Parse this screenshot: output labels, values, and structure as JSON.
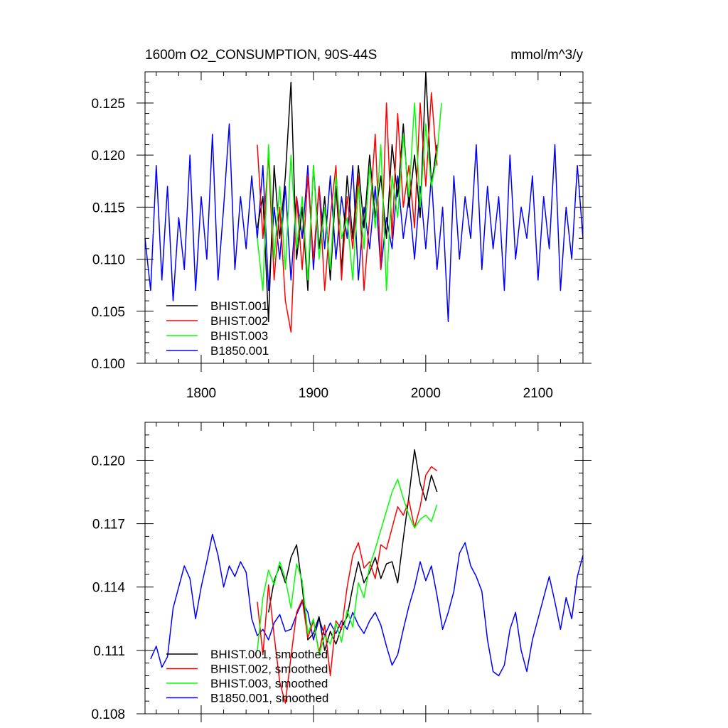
{
  "chart_data": [
    {
      "type": "line",
      "title": "1600m O2_CONSUMPTION, 90S-44S",
      "units": "mmol/m^3/y",
      "xlim": [
        1750,
        2140
      ],
      "ylim": [
        0.1,
        0.128
      ],
      "xticks": [
        1800,
        1900,
        2000,
        2100
      ],
      "xtick_labels": [
        "1800",
        "1900",
        "2000",
        "2100"
      ],
      "yticks": [
        0.1,
        0.105,
        0.11,
        0.115,
        0.12,
        0.125
      ],
      "ytick_labels": [
        "0.100",
        "0.105",
        "0.110",
        "0.115",
        "0.120",
        "0.125"
      ],
      "legend_position": "bottom-left",
      "series": [
        {
          "name": "BHIST.001",
          "color": "#000000",
          "x": [
            1850,
            1855,
            1860,
            1865,
            1870,
            1875,
            1880,
            1885,
            1890,
            1895,
            1900,
            1905,
            1910,
            1915,
            1920,
            1925,
            1930,
            1935,
            1940,
            1945,
            1950,
            1955,
            1960,
            1965,
            1970,
            1975,
            1980,
            1985,
            1990,
            1995,
            2000,
            2005,
            2010
          ],
          "y": [
            0.113,
            0.116,
            0.104,
            0.119,
            0.112,
            0.118,
            0.127,
            0.11,
            0.115,
            0.107,
            0.119,
            0.111,
            0.116,
            0.108,
            0.117,
            0.109,
            0.118,
            0.112,
            0.119,
            0.113,
            0.12,
            0.114,
            0.118,
            0.112,
            0.121,
            0.116,
            0.123,
            0.115,
            0.12,
            0.114,
            0.128,
            0.117,
            0.121
          ]
        },
        {
          "name": "BHIST.002",
          "color": "#ff0000",
          "x": [
            1850,
            1855,
            1860,
            1865,
            1870,
            1875,
            1880,
            1885,
            1890,
            1895,
            1900,
            1905,
            1910,
            1915,
            1920,
            1925,
            1930,
            1935,
            1940,
            1945,
            1950,
            1955,
            1960,
            1965,
            1970,
            1975,
            1980,
            1985,
            1990,
            1995,
            2000,
            2005,
            2010
          ],
          "y": [
            0.121,
            0.112,
            0.12,
            0.108,
            0.115,
            0.106,
            0.103,
            0.116,
            0.109,
            0.118,
            0.11,
            0.117,
            0.107,
            0.114,
            0.119,
            0.108,
            0.116,
            0.111,
            0.118,
            0.107,
            0.114,
            0.122,
            0.109,
            0.125,
            0.112,
            0.124,
            0.115,
            0.119,
            0.113,
            0.125,
            0.117,
            0.126,
            0.119
          ]
        },
        {
          "name": "BHIST.003",
          "color": "#00ff00",
          "x": [
            1850,
            1855,
            1860,
            1865,
            1870,
            1875,
            1880,
            1885,
            1890,
            1895,
            1900,
            1905,
            1910,
            1915,
            1920,
            1925,
            1930,
            1935,
            1940,
            1945,
            1950,
            1955,
            1960,
            1965,
            1970,
            1975,
            1980,
            1985,
            1990,
            1995,
            2000,
            2005,
            2010,
            2014
          ],
          "y": [
            0.112,
            0.107,
            0.121,
            0.11,
            0.117,
            0.109,
            0.12,
            0.111,
            0.116,
            0.108,
            0.119,
            0.11,
            0.115,
            0.109,
            0.118,
            0.112,
            0.114,
            0.108,
            0.117,
            0.111,
            0.119,
            0.113,
            0.121,
            0.107,
            0.118,
            0.114,
            0.122,
            0.116,
            0.125,
            0.115,
            0.123,
            0.117,
            0.12,
            0.125
          ]
        },
        {
          "name": "B1850.001",
          "color": "#0000ff",
          "x": [
            1750,
            1755,
            1760,
            1765,
            1770,
            1775,
            1780,
            1785,
            1790,
            1795,
            1800,
            1805,
            1810,
            1815,
            1820,
            1825,
            1830,
            1835,
            1840,
            1845,
            1850,
            1855,
            1860,
            1865,
            1870,
            1875,
            1880,
            1885,
            1890,
            1895,
            1900,
            1905,
            1910,
            1915,
            1920,
            1925,
            1930,
            1935,
            1940,
            1945,
            1950,
            1955,
            1960,
            1965,
            1970,
            1975,
            1980,
            1985,
            1990,
            1995,
            2000,
            2005,
            2010,
            2015,
            2020,
            2025,
            2030,
            2035,
            2040,
            2045,
            2050,
            2055,
            2060,
            2065,
            2070,
            2075,
            2080,
            2085,
            2090,
            2095,
            2100,
            2105,
            2110,
            2115,
            2120,
            2125,
            2130,
            2135,
            2140
          ],
          "y": [
            0.112,
            0.107,
            0.119,
            0.108,
            0.117,
            0.106,
            0.114,
            0.109,
            0.12,
            0.107,
            0.116,
            0.11,
            0.122,
            0.108,
            0.115,
            0.123,
            0.109,
            0.116,
            0.111,
            0.118,
            0.112,
            0.119,
            0.107,
            0.115,
            0.11,
            0.117,
            0.108,
            0.116,
            0.112,
            0.119,
            0.109,
            0.117,
            0.111,
            0.118,
            0.11,
            0.116,
            0.112,
            0.119,
            0.108,
            0.115,
            0.111,
            0.117,
            0.109,
            0.114,
            0.111,
            0.118,
            0.112,
            0.116,
            0.11,
            0.117,
            0.111,
            0.118,
            0.109,
            0.115,
            0.104,
            0.118,
            0.11,
            0.116,
            0.112,
            0.121,
            0.109,
            0.117,
            0.111,
            0.116,
            0.107,
            0.12,
            0.11,
            0.115,
            0.112,
            0.118,
            0.108,
            0.116,
            0.111,
            0.121,
            0.107,
            0.115,
            0.11,
            0.119,
            0.112
          ]
        }
      ]
    },
    {
      "type": "line",
      "xlim": [
        1750,
        2140
      ],
      "ylim": [
        0.108,
        0.1218
      ],
      "xticks": [
        1800,
        1900,
        2000,
        2100
      ],
      "yticks": [
        0.108,
        0.111,
        0.114,
        0.117,
        0.12
      ],
      "ytick_labels": [
        "0.108",
        "0.111",
        "0.114",
        "0.117",
        "0.120"
      ],
      "legend_position": "bottom-left",
      "series": [
        {
          "name": "BHIST.001, smoothed",
          "color": "#000000",
          "x": [
            1860,
            1865,
            1870,
            1875,
            1880,
            1885,
            1890,
            1895,
            1900,
            1905,
            1910,
            1915,
            1920,
            1925,
            1930,
            1935,
            1940,
            1945,
            1950,
            1955,
            1960,
            1965,
            1970,
            1975,
            1980,
            1985,
            1990,
            1995,
            2000,
            2005,
            2010
          ],
          "y": [
            0.1128,
            0.1143,
            0.115,
            0.1142,
            0.1154,
            0.116,
            0.114,
            0.1115,
            0.1118,
            0.1126,
            0.111,
            0.1119,
            0.1113,
            0.1121,
            0.1126,
            0.114,
            0.1152,
            0.1142,
            0.1147,
            0.1154,
            0.1144,
            0.1151,
            0.1152,
            0.1142,
            0.1163,
            0.1183,
            0.1205,
            0.1189,
            0.1181,
            0.1193,
            0.1185
          ]
        },
        {
          "name": "BHIST.002, smoothed",
          "color": "#ff0000",
          "x": [
            1850,
            1855,
            1860,
            1865,
            1870,
            1875,
            1880,
            1885,
            1890,
            1895,
            1900,
            1905,
            1910,
            1915,
            1920,
            1925,
            1930,
            1935,
            1940,
            1945,
            1950,
            1955,
            1960,
            1965,
            1970,
            1975,
            1980,
            1985,
            1990,
            1995,
            2000,
            2005,
            2010
          ],
          "y": [
            0.1133,
            0.1108,
            0.1141,
            0.1117,
            0.1095,
            0.1085,
            0.1107,
            0.1128,
            0.1134,
            0.1116,
            0.1124,
            0.1109,
            0.1122,
            0.1098,
            0.1124,
            0.112,
            0.114,
            0.1155,
            0.1161,
            0.1149,
            0.1152,
            0.1144,
            0.116,
            0.1158,
            0.1168,
            0.1178,
            0.1174,
            0.1181,
            0.1168,
            0.1178,
            0.1193,
            0.1197,
            0.1195
          ]
        },
        {
          "name": "BHIST.003, smoothed",
          "color": "#00ff00",
          "x": [
            1850,
            1855,
            1860,
            1865,
            1870,
            1875,
            1880,
            1885,
            1890,
            1895,
            1900,
            1905,
            1910,
            1915,
            1920,
            1925,
            1930,
            1935,
            1940,
            1945,
            1950,
            1955,
            1960,
            1965,
            1970,
            1975,
            1980,
            1985,
            1990,
            1995,
            2000,
            2005,
            2010
          ],
          "y": [
            0.111,
            0.1135,
            0.1148,
            0.1141,
            0.1152,
            0.1144,
            0.113,
            0.1151,
            0.1143,
            0.1118,
            0.1125,
            0.1108,
            0.1117,
            0.1113,
            0.1123,
            0.1114,
            0.1129,
            0.1121,
            0.1142,
            0.1135,
            0.115,
            0.1158,
            0.1167,
            0.1176,
            0.1185,
            0.1191,
            0.1182,
            0.1174,
            0.1168,
            0.1172,
            0.1174,
            0.1171,
            0.1179
          ]
        },
        {
          "name": "B1850.001, smoothed",
          "color": "#0000ff",
          "x": [
            1755,
            1760,
            1765,
            1770,
            1775,
            1780,
            1785,
            1790,
            1795,
            1800,
            1805,
            1810,
            1815,
            1820,
            1825,
            1830,
            1835,
            1840,
            1845,
            1850,
            1855,
            1860,
            1865,
            1870,
            1875,
            1880,
            1885,
            1890,
            1895,
            1900,
            1905,
            1910,
            1915,
            1920,
            1925,
            1930,
            1935,
            1940,
            1945,
            1950,
            1955,
            1960,
            1965,
            1970,
            1975,
            1980,
            1985,
            1990,
            1995,
            2000,
            2005,
            2010,
            2015,
            2020,
            2025,
            2030,
            2035,
            2040,
            2045,
            2050,
            2055,
            2060,
            2065,
            2070,
            2075,
            2080,
            2085,
            2090,
            2095,
            2100,
            2105,
            2110,
            2115,
            2120,
            2125,
            2130,
            2135,
            2140
          ],
          "y": [
            0.1106,
            0.1112,
            0.1102,
            0.1107,
            0.113,
            0.114,
            0.115,
            0.1144,
            0.1125,
            0.114,
            0.1152,
            0.1165,
            0.1155,
            0.114,
            0.115,
            0.1145,
            0.1152,
            0.1147,
            0.1125,
            0.1117,
            0.112,
            0.1115,
            0.1123,
            0.1127,
            0.1119,
            0.112,
            0.1127,
            0.1133,
            0.1128,
            0.1115,
            0.1125,
            0.1117,
            0.1123,
            0.1118,
            0.1124,
            0.112,
            0.1128,
            0.1122,
            0.1118,
            0.1124,
            0.1128,
            0.1122,
            0.1112,
            0.1103,
            0.1108,
            0.112,
            0.1131,
            0.114,
            0.1152,
            0.1143,
            0.115,
            0.1136,
            0.112,
            0.1128,
            0.1138,
            0.1156,
            0.1161,
            0.115,
            0.1145,
            0.1138,
            0.1115,
            0.11,
            0.1098,
            0.1103,
            0.112,
            0.1128,
            0.111,
            0.11,
            0.1115,
            0.1125,
            0.1135,
            0.1145,
            0.1133,
            0.112,
            0.1135,
            0.1125,
            0.1145,
            0.1155
          ]
        }
      ]
    }
  ]
}
